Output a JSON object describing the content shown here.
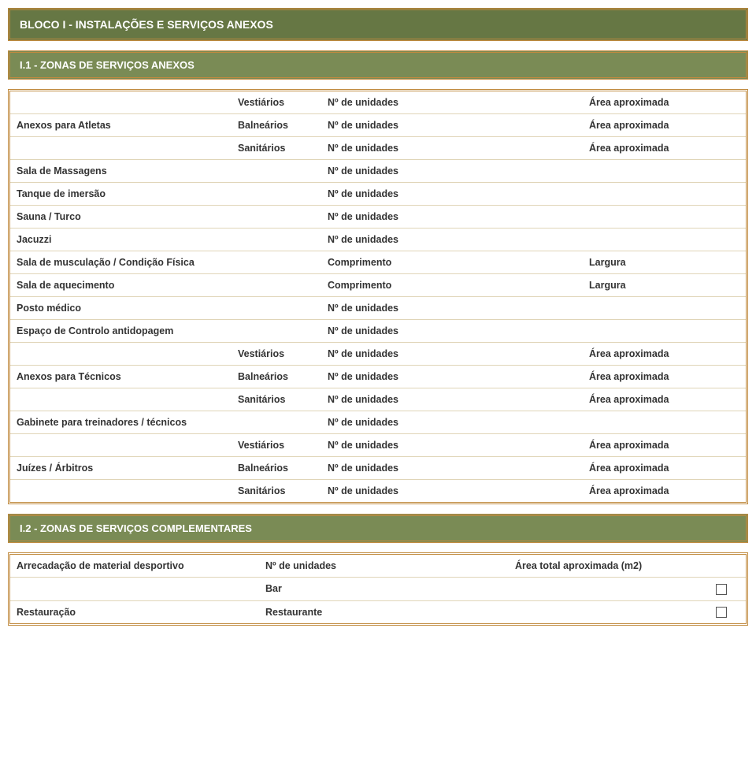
{
  "block_header": "BLOCO I - INSTALAÇÕES E SERVIÇOS ANEXOS",
  "sub1": "I.1 - ZONAS DE SERVIÇOS ANEXOS",
  "sub2": "I.2 - ZONAS DE SERVIÇOS COMPLEMENTARES",
  "labels": {
    "vestiarios": "Vestiários",
    "balnearios": "Balneários",
    "sanitarios": "Sanitários",
    "n_unidades": "Nº de unidades",
    "area_aprox": "Área aproximada",
    "comprimento": "Comprimento",
    "largura": "Largura",
    "bar": "Bar",
    "restaurante": "Restaurante",
    "area_total_m2": "Área total aproximada (m2)"
  },
  "rows": {
    "anexos_atletas": "Anexos para Atletas",
    "sala_massagens": "Sala de Massagens",
    "tanque_imersao": "Tanque de imersão",
    "sauna_turco": "Sauna / Turco",
    "jacuzzi": " Jacuzzi",
    "sala_musculacao": "Sala de musculação / Condição Física",
    "sala_aquecimento": "Sala de aquecimento",
    "posto_medico": "Posto médico",
    "espaco_antidopagem": "Espaço de Controlo antidopagem",
    "anexos_tecnicos": "Anexos para Técnicos",
    "gabinete_treinadores": "Gabinete para treinadores / técnicos",
    "juizes_arbitros": "Juízes / Árbitros",
    "arrecadacao": "Arrecadação de material desportivo",
    "restauracao": "Restauração"
  }
}
